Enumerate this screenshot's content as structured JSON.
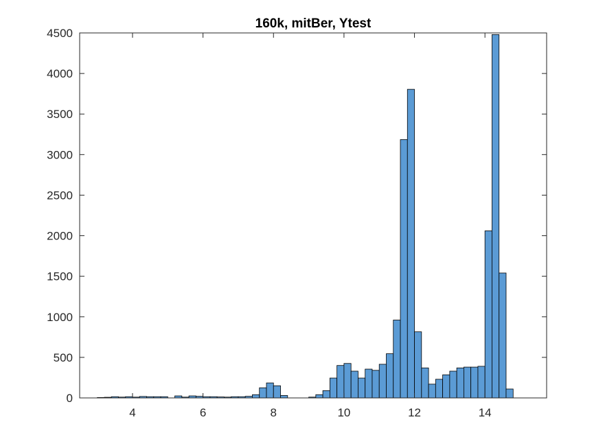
{
  "chart_data": {
    "type": "bar",
    "title": "160k, mitBer, Ytest",
    "xlabel": "",
    "ylabel": "",
    "xlim": [
      2.5,
      15.75
    ],
    "ylim": [
      0,
      4500
    ],
    "xticks": [
      4,
      6,
      8,
      10,
      12,
      14
    ],
    "yticks": [
      0,
      500,
      1000,
      1500,
      2000,
      2500,
      3000,
      3500,
      4000,
      4500
    ],
    "bin_width": 0.2,
    "bar_color": "#5B9BD5",
    "bin_edges_start": 3.0,
    "values": [
      5,
      8,
      15,
      10,
      15,
      10,
      18,
      15,
      15,
      15,
      0,
      25,
      10,
      25,
      20,
      15,
      15,
      12,
      10,
      15,
      15,
      20,
      40,
      125,
      185,
      150,
      30,
      0,
      0,
      0,
      10,
      40,
      90,
      245,
      400,
      425,
      330,
      245,
      355,
      340,
      415,
      545,
      960,
      3185,
      3805,
      815,
      370,
      170,
      230,
      285,
      330,
      370,
      380,
      380,
      390,
      2060,
      4480,
      1540,
      110
    ],
    "grid": false,
    "legend": "none"
  }
}
